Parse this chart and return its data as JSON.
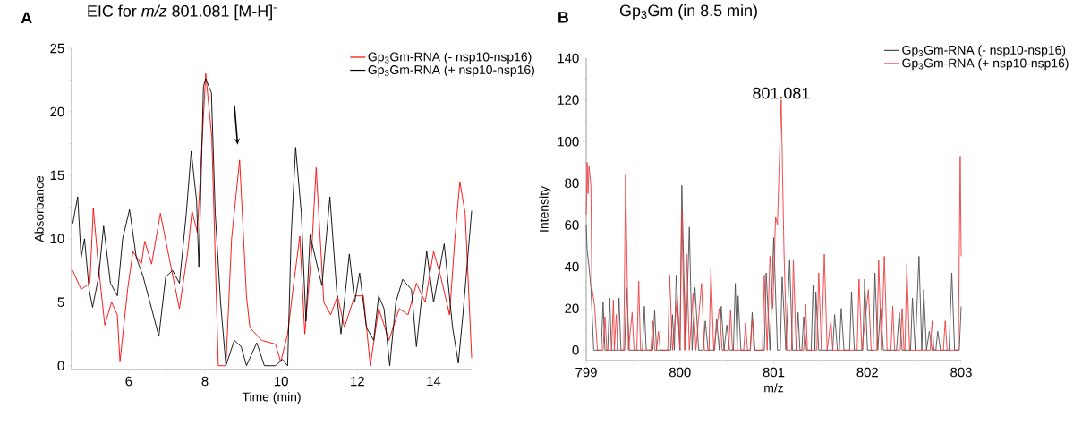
{
  "chart_data": [
    {
      "type": "line",
      "title": "EIC for *m/z* 801.081 [M-H]$^{-}$",
      "xlabel": "Time (min)",
      "ylabel": "Absorbance",
      "xlim": [
        4.5,
        15
      ],
      "ylim": [
        -0.3,
        25
      ],
      "xticks": [
        6,
        8,
        10,
        12,
        14
      ],
      "yticks": [
        0,
        5,
        10,
        15,
        20,
        25
      ],
      "legend": "top right",
      "annotations": [
        "A"
      ],
      "series": [
        {
          "name": "Gp$_{3}$Gm-RNA (- nsp10-nsp16)",
          "color": "#ff0000",
          "x": [
            4.53,
            4.75,
            4.98,
            5.07,
            5.2,
            5.37,
            5.55,
            5.7,
            5.77,
            5.97,
            6.11,
            6.33,
            6.42,
            6.6,
            6.83,
            7.06,
            7.33,
            7.55,
            7.66,
            7.8,
            8.02,
            8.18,
            8.35,
            8.55,
            8.7,
            8.91,
            9.09,
            9.18,
            9.49,
            9.85,
            9.99,
            10.17,
            10.31,
            10.49,
            10.62,
            10.8,
            10.92,
            11.12,
            11.3,
            11.48,
            11.66,
            11.93,
            12.16,
            12.34,
            12.56,
            12.83,
            13.1,
            13.33,
            13.55,
            13.78,
            14.0,
            14.19,
            14.42,
            14.56,
            14.69,
            14.83,
            15.0
          ],
          "values": [
            7.5,
            6,
            6.5,
            12.4,
            8,
            3.2,
            5,
            4,
            0.3,
            6,
            9,
            8,
            9.8,
            8,
            12,
            8.5,
            4.5,
            9,
            12.2,
            10.5,
            23,
            18,
            0,
            0,
            10,
            16.2,
            5.5,
            3,
            2,
            1.7,
            0.3,
            2.5,
            6,
            10.2,
            2.5,
            9,
            15.6,
            5,
            4,
            5.5,
            3,
            5.5,
            5.5,
            0,
            4.5,
            2,
            4.5,
            4,
            6.5,
            5,
            9,
            7,
            4,
            10,
            14.5,
            12,
            0.6
          ]
        },
        {
          "name": "Gp$_{3}$Gm-RNA (+ nsp10-nsp16)",
          "color": "#000000",
          "x": [
            4.53,
            4.66,
            4.75,
            4.84,
            4.96,
            5.05,
            5.21,
            5.34,
            5.52,
            5.7,
            5.84,
            6.02,
            6.2,
            6.38,
            6.6,
            6.79,
            6.97,
            7.15,
            7.33,
            7.51,
            7.64,
            7.78,
            7.84,
            7.96,
            8.02,
            8.17,
            8.27,
            8.41,
            8.55,
            8.77,
            8.95,
            9.09,
            9.36,
            9.56,
            9.85,
            10.03,
            10.17,
            10.26,
            10.38,
            10.53,
            10.65,
            10.76,
            10.86,
            11.07,
            11.28,
            11.48,
            11.57,
            11.79,
            11.93,
            12.06,
            12.24,
            12.43,
            12.56,
            12.7,
            12.85,
            13.01,
            13.19,
            13.42,
            13.55,
            13.82,
            14.0,
            14.28,
            14.5,
            14.65,
            14.77,
            15.0
          ],
          "values": [
            11.2,
            13.3,
            8.5,
            10,
            6,
            4.6,
            7,
            11,
            6.5,
            5.5,
            10,
            12.3,
            8.5,
            7,
            4.5,
            2.3,
            7,
            7.5,
            6.5,
            12,
            16.9,
            13,
            7.8,
            22,
            22.6,
            21.5,
            12,
            5,
            0,
            2,
            1.5,
            0,
            1.8,
            0,
            0,
            0.5,
            0,
            10,
            17.2,
            12,
            3.5,
            10.3,
            9,
            6.3,
            13.3,
            5,
            2.5,
            8.8,
            5,
            7.3,
            3,
            2,
            5.5,
            4.5,
            0,
            5,
            6.8,
            6,
            1.5,
            9,
            5,
            9.6,
            3,
            0.2,
            4,
            12.2
          ]
        }
      ]
    },
    {
      "type": "line",
      "title": "Gp$_{3}$Gm (in 8.5 min)",
      "xlabel": "m/z",
      "ylabel": "Intensity",
      "xlim": [
        799,
        803
      ],
      "ylim": [
        -5,
        140
      ],
      "xticks": [
        799,
        800,
        801,
        802,
        803
      ],
      "yticks": [
        0,
        20,
        40,
        60,
        80,
        100,
        120,
        140
      ],
      "legend": "top right",
      "annotations": [
        "B",
        {
          "text": "801.081",
          "x": 801.08,
          "y": 120
        }
      ],
      "series": [
        {
          "name": "Gp$_{3}$Gm-RNA (- nsp10-nsp16)",
          "color": "#4d4d4d",
          "x": [
            799.0,
            799.01,
            799.03,
            799.05,
            799.08,
            799.16,
            799.18,
            799.2,
            799.23,
            799.25,
            799.27,
            799.33,
            799.35,
            799.37,
            799.41,
            799.43,
            799.46,
            799.6,
            799.62,
            799.64,
            799.71,
            799.73,
            799.75,
            799.9,
            799.92,
            799.94,
            799.96,
            800.0,
            800.02,
            800.06,
            800.1,
            800.13,
            800.16,
            800.2,
            800.25,
            800.27,
            800.3,
            800.37,
            800.39,
            800.42,
            800.44,
            800.47,
            800.5,
            800.53,
            800.57,
            800.59,
            800.61,
            800.62,
            800.65,
            800.75,
            800.77,
            800.8,
            800.9,
            800.92,
            800.96,
            801.0,
            801.04,
            801.07,
            801.09,
            801.13,
            801.17,
            801.2,
            801.24,
            801.26,
            801.28,
            801.3,
            801.32,
            801.35,
            801.4,
            801.42,
            801.44,
            801.45,
            801.48,
            801.63,
            801.65,
            801.68,
            801.7,
            801.72,
            801.75,
            801.81,
            801.83,
            801.86,
            801.95,
            801.97,
            802.0,
            802.06,
            802.08,
            802.11,
            802.14,
            802.17,
            802.31,
            802.34,
            802.37,
            802.46,
            802.48,
            802.51,
            802.55,
            802.58,
            802.6,
            802.63,
            802.66,
            802.69,
            802.73,
            802.75,
            802.78,
            802.87,
            802.9,
            802.93,
            802.98,
            803.0
          ],
          "values": [
            60,
            48,
            40,
            30,
            0,
            0,
            23,
            0,
            0,
            25,
            0,
            0,
            25,
            0,
            0,
            30,
            0,
            0,
            21,
            0,
            0,
            19,
            0,
            0,
            17,
            0,
            36,
            0,
            79,
            0,
            59,
            0,
            30,
            0,
            0,
            14,
            0,
            0,
            15,
            0,
            21,
            0,
            12,
            0,
            0,
            32,
            0,
            26,
            0,
            0,
            18,
            0,
            0,
            37,
            0,
            54,
            0,
            0,
            35,
            0,
            43,
            0,
            0,
            18,
            0,
            0,
            16,
            0,
            0,
            31,
            0,
            28,
            0,
            0,
            17,
            0,
            0,
            20,
            0,
            0,
            28,
            0,
            0,
            34,
            0,
            0,
            37,
            0,
            20,
            0,
            0,
            18,
            0,
            0,
            25,
            0,
            45,
            0,
            29,
            0,
            9,
            0,
            0,
            9,
            0,
            0,
            37,
            0,
            0,
            21
          ]
        },
        {
          "name": "Gp$_{3}$Gm-RNA (+ nsp10-nsp16)",
          "color": "#f0393c",
          "x": [
            799.0,
            799.01,
            799.02,
            799.03,
            799.05,
            799.06,
            799.09,
            799.12,
            799.18,
            799.2,
            799.22,
            799.27,
            799.29,
            799.3,
            799.32,
            799.34,
            799.4,
            799.42,
            799.45,
            799.49,
            799.51,
            799.54,
            799.56,
            799.58,
            799.69,
            799.71,
            799.73,
            799.75,
            799.77,
            799.79,
            799.87,
            799.89,
            799.92,
            799.97,
            800.0,
            800.02,
            800.05,
            800.07,
            800.1,
            800.14,
            800.17,
            800.23,
            800.26,
            800.31,
            800.33,
            800.36,
            800.42,
            800.45,
            800.52,
            800.54,
            800.56,
            800.68,
            800.7,
            800.72,
            800.75,
            800.77,
            800.79,
            800.88,
            800.9,
            800.93,
            800.96,
            800.99,
            801.02,
            801.04,
            801.06,
            801.08,
            801.11,
            801.14,
            801.19,
            801.21,
            801.24,
            801.32,
            801.34,
            801.36,
            801.46,
            801.48,
            801.51,
            801.54,
            801.57,
            801.61,
            801.63,
            801.89,
            801.91,
            801.94,
            802.01,
            802.04,
            802.1,
            802.12,
            802.15,
            802.18,
            802.21,
            802.25,
            802.27,
            802.29,
            802.35,
            802.37,
            802.39,
            802.4,
            802.42,
            802.45,
            802.67,
            802.69,
            802.71,
            802.81,
            802.83,
            802.85,
            802.97,
            802.99,
            803.0
          ],
          "values": [
            65,
            90,
            75,
            88,
            79,
            30,
            21,
            0,
            0,
            16,
            0,
            0,
            24,
            0,
            17,
            0,
            0,
            84,
            0,
            18,
            0,
            0,
            33,
            0,
            0,
            14,
            0,
            0,
            9,
            0,
            0,
            36,
            0,
            25,
            0,
            67,
            0,
            46,
            0,
            27,
            0,
            32,
            0,
            0,
            39,
            0,
            20,
            0,
            0,
            19,
            0,
            0,
            13,
            0,
            0,
            15,
            0,
            0,
            36,
            0,
            45,
            20,
            64,
            60,
            90,
            120,
            47,
            0,
            0,
            43,
            0,
            0,
            22,
            0,
            0,
            37,
            0,
            46,
            0,
            14,
            0,
            0,
            34,
            0,
            29,
            0,
            0,
            43,
            0,
            45,
            0,
            0,
            21,
            0,
            0,
            20,
            0,
            0,
            41,
            0,
            0,
            14,
            0,
            0,
            14,
            0,
            0,
            93,
            45
          ]
        }
      ]
    }
  ]
}
